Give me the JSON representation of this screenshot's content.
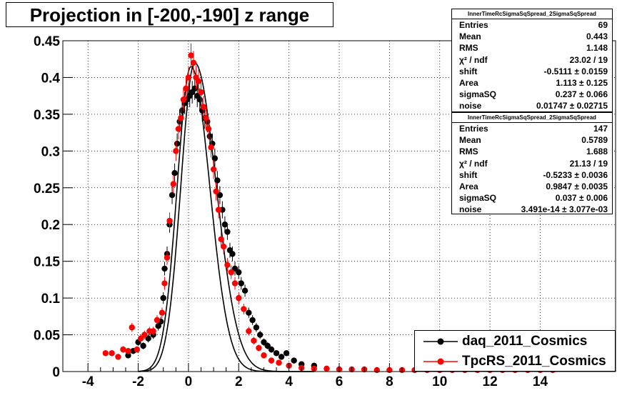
{
  "title": "Projection in [-200,-190] z range",
  "colors": {
    "daq": "#000000",
    "tpc": "#ff0000",
    "grid": "#000000"
  },
  "stats_boxes": [
    {
      "name": "InnerTimeRcSigmaSqSpread_2SigmaSqSpread",
      "rows": [
        {
          "key": "Entries",
          "value": "69"
        },
        {
          "key": "Mean",
          "value": "0.443"
        },
        {
          "key": "RMS",
          "value": "1.148"
        },
        {
          "key": "χ² / ndf",
          "value": "23.02 / 19"
        },
        {
          "key": "shift",
          "value": "-0.5111 ± 0.0159"
        },
        {
          "key": "Area",
          "value": "1.113 ± 0.125"
        },
        {
          "key": "sigmaSQ",
          "value": "0.237 ± 0.066"
        },
        {
          "key": "noise",
          "value": "0.01747 ± 0.02715"
        }
      ]
    },
    {
      "name": "InnerTimeRcSigmaSqSpread_2SigmaSqSpread",
      "rows": [
        {
          "key": "Entries",
          "value": "147"
        },
        {
          "key": "Mean",
          "value": "0.5789"
        },
        {
          "key": "RMS",
          "value": "1.688"
        },
        {
          "key": "χ² / ndf",
          "value": "21.13 / 19"
        },
        {
          "key": "shift",
          "value": "-0.5233 ± 0.0036"
        },
        {
          "key": "Area",
          "value": "0.9847 ± 0.0035"
        },
        {
          "key": "sigmaSQ",
          "value": "0.037 ± 0.006"
        },
        {
          "key": "noise",
          "value": "3.491e-14 ± 3.077e-03"
        }
      ]
    }
  ],
  "legend": [
    {
      "label": "daq_2011_Cosmics",
      "series": "daq"
    },
    {
      "label": "TpcRS_2011_Cosmics",
      "series": "tpc"
    }
  ],
  "chart_data": {
    "type": "scatter",
    "title": "Projection in [-200,-190] z range",
    "xlabel": "",
    "ylabel": "",
    "xlim": [
      -5,
      17
    ],
    "ylim": [
      0,
      0.45
    ],
    "xticks": [
      -4,
      -2,
      0,
      2,
      4,
      6,
      8,
      10,
      12,
      14
    ],
    "yticks": [
      0,
      0.05,
      0.1,
      0.15,
      0.2,
      0.25,
      0.3,
      0.35,
      0.4,
      0.45
    ],
    "yticklabels": [
      "0",
      "0.05",
      "0.1",
      "0.15",
      "0.2",
      "0.25",
      "0.3",
      "0.35",
      "0.4",
      "0.45"
    ],
    "grid": true,
    "series": [
      {
        "name": "daq_2011_Cosmics",
        "key": "daq",
        "points": [
          [
            -2.4,
            0.022
          ],
          [
            -2.2,
            0.028
          ],
          [
            -2.0,
            0.04
          ],
          [
            -1.8,
            0.035
          ],
          [
            -1.6,
            0.045
          ],
          [
            -1.4,
            0.05
          ],
          [
            -1.2,
            0.062
          ],
          [
            -1.1,
            0.068
          ],
          [
            -1.0,
            0.1
          ],
          [
            -0.95,
            0.14
          ],
          [
            -0.85,
            0.16
          ],
          [
            -0.75,
            0.2
          ],
          [
            -0.65,
            0.24
          ],
          [
            -0.55,
            0.27
          ],
          [
            -0.45,
            0.31
          ],
          [
            -0.35,
            0.34
          ],
          [
            -0.25,
            0.355
          ],
          [
            -0.15,
            0.365
          ],
          [
            -0.05,
            0.37
          ],
          [
            0.05,
            0.375
          ],
          [
            0.15,
            0.38
          ],
          [
            0.25,
            0.385
          ],
          [
            0.35,
            0.375
          ],
          [
            0.45,
            0.37
          ],
          [
            0.55,
            0.355
          ],
          [
            0.65,
            0.345
          ],
          [
            0.75,
            0.34
          ],
          [
            0.85,
            0.32
          ],
          [
            0.95,
            0.31
          ],
          [
            1.05,
            0.29
          ],
          [
            1.15,
            0.26
          ],
          [
            1.25,
            0.24
          ],
          [
            1.35,
            0.22
          ],
          [
            1.45,
            0.2
          ],
          [
            1.55,
            0.19
          ],
          [
            1.65,
            0.165
          ],
          [
            1.75,
            0.16
          ],
          [
            1.85,
            0.14
          ],
          [
            2.0,
            0.135
          ],
          [
            2.1,
            0.12
          ],
          [
            2.25,
            0.11
          ],
          [
            2.4,
            0.08
          ],
          [
            2.55,
            0.07
          ],
          [
            2.7,
            0.06
          ],
          [
            2.85,
            0.05
          ],
          [
            3.0,
            0.04
          ],
          [
            3.15,
            0.035
          ],
          [
            3.3,
            0.03
          ],
          [
            3.5,
            0.025
          ],
          [
            3.7,
            0.02
          ],
          [
            3.9,
            0.025
          ],
          [
            4.2,
            0.015
          ],
          [
            4.5,
            0.01
          ],
          [
            5.0,
            0.008
          ]
        ],
        "fit": {
          "mu": 0.25,
          "sigma_left": 0.55,
          "sigma_right": 0.85,
          "amp": 0.42
        }
      },
      {
        "name": "TpcRS_2011_Cosmics",
        "key": "tpc",
        "points": [
          [
            -3.3,
            0.025
          ],
          [
            -3.05,
            0.025
          ],
          [
            -2.8,
            0.02
          ],
          [
            -2.6,
            0.03
          ],
          [
            -2.4,
            0.028
          ],
          [
            -2.25,
            0.06
          ],
          [
            -2.05,
            0.03
          ],
          [
            -1.9,
            0.045
          ],
          [
            -1.75,
            0.05
          ],
          [
            -1.55,
            0.055
          ],
          [
            -1.4,
            0.055
          ],
          [
            -1.25,
            0.07
          ],
          [
            -1.05,
            0.08
          ],
          [
            -0.95,
            0.12
          ],
          [
            -0.85,
            0.155
          ],
          [
            -0.75,
            0.205
          ],
          [
            -0.6,
            0.255
          ],
          [
            -0.5,
            0.3
          ],
          [
            -0.4,
            0.33
          ],
          [
            -0.3,
            0.345
          ],
          [
            -0.2,
            0.37
          ],
          [
            -0.1,
            0.385
          ],
          [
            0.0,
            0.4
          ],
          [
            0.1,
            0.43
          ],
          [
            0.2,
            0.42
          ],
          [
            0.3,
            0.4
          ],
          [
            0.4,
            0.395
          ],
          [
            0.5,
            0.38
          ],
          [
            0.6,
            0.36
          ],
          [
            0.7,
            0.345
          ],
          [
            0.8,
            0.33
          ],
          [
            0.9,
            0.305
          ],
          [
            1.0,
            0.275
          ],
          [
            1.1,
            0.245
          ],
          [
            1.2,
            0.22
          ],
          [
            1.3,
            0.18
          ],
          [
            1.4,
            0.17
          ],
          [
            1.55,
            0.145
          ],
          [
            1.7,
            0.135
          ],
          [
            1.85,
            0.12
          ],
          [
            2.0,
            0.1
          ],
          [
            2.2,
            0.085
          ],
          [
            2.4,
            0.055
          ],
          [
            2.6,
            0.042
          ],
          [
            2.8,
            0.032
          ],
          [
            3.0,
            0.022
          ],
          [
            3.3,
            0.015
          ],
          [
            3.6,
            0.012
          ],
          [
            4.0,
            0.008
          ],
          [
            4.5,
            0.005
          ],
          [
            5.0,
            0.004
          ],
          [
            5.5,
            0.004
          ],
          [
            6.0,
            0.003
          ],
          [
            6.5,
            0.003
          ],
          [
            7.0,
            0.003
          ],
          [
            7.5,
            0.002
          ],
          [
            8.0,
            0.002
          ],
          [
            8.5,
            0.002
          ],
          [
            9.0,
            0.002
          ],
          [
            9.5,
            0.002
          ],
          [
            10.0,
            0.002
          ],
          [
            10.5,
            0.002
          ],
          [
            11.0,
            0.002
          ],
          [
            11.5,
            0.002
          ],
          [
            12.0,
            0.002
          ],
          [
            12.5,
            0.002
          ],
          [
            13.0,
            0.002
          ],
          [
            13.5,
            0.002
          ],
          [
            14.0,
            0.002
          ],
          [
            14.5,
            0.002
          ]
        ],
        "fit": {
          "mu": 0.1,
          "sigma_left": 0.55,
          "sigma_right": 0.75,
          "amp": 0.415
        }
      }
    ]
  }
}
